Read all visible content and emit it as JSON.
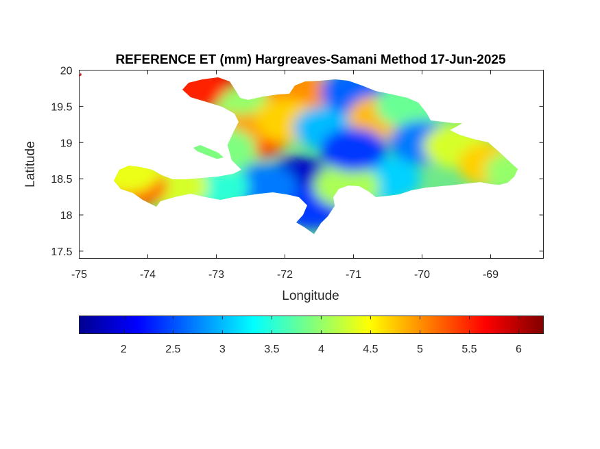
{
  "chart_data": {
    "type": "heatmap",
    "title": "REFERENCE ET (mm) Hargreaves-Samani Method  17-Jun-2025",
    "xlabel": "Longitude",
    "ylabel": "Latitude",
    "xlim": [
      -75,
      -68.23
    ],
    "ylim": [
      17.4,
      20
    ],
    "xticks": [
      -75,
      -74,
      -73,
      -72,
      -71,
      -70,
      -69
    ],
    "xtick_labels": [
      "-75",
      "-74",
      "-73",
      "-72",
      "-71",
      "-70",
      "-69"
    ],
    "yticks": [
      17.5,
      18,
      18.5,
      19,
      19.5,
      20
    ],
    "ytick_labels": [
      "17.5",
      "18",
      "18.5",
      "19",
      "19.5",
      "20"
    ],
    "grid": false,
    "colormap": "jet",
    "colorbar": {
      "orientation": "horizontal",
      "location": "below",
      "range": [
        1.55,
        6.25
      ],
      "ticks": [
        2,
        2.5,
        3,
        3.5,
        4,
        4.5,
        5,
        5.5,
        6
      ],
      "tick_labels": [
        "2",
        "2.5",
        "3",
        "3.5",
        "4",
        "4.5",
        "5",
        "5.5",
        "6"
      ]
    },
    "regions": [
      {
        "lon": -72.9,
        "lat": 19.85,
        "value": 5.9
      },
      {
        "lon": -73.3,
        "lat": 19.75,
        "value": 5.5
      },
      {
        "lon": -72.5,
        "lat": 19.5,
        "value": 4.0
      },
      {
        "lon": -71.8,
        "lat": 19.7,
        "value": 5.0
      },
      {
        "lon": -72.4,
        "lat": 19.1,
        "value": 5.4
      },
      {
        "lon": -72.0,
        "lat": 19.3,
        "value": 4.7
      },
      {
        "lon": -72.8,
        "lat": 19.1,
        "value": 4.9
      },
      {
        "lon": -71.4,
        "lat": 19.2,
        "value": 3.0
      },
      {
        "lon": -71.0,
        "lat": 19.7,
        "value": 2.6
      },
      {
        "lon": -70.6,
        "lat": 19.35,
        "value": 4.8
      },
      {
        "lon": -70.2,
        "lat": 19.5,
        "value": 3.8
      },
      {
        "lon": -70.0,
        "lat": 19.0,
        "value": 2.7
      },
      {
        "lon": -69.5,
        "lat": 18.95,
        "value": 4.3
      },
      {
        "lon": -69.0,
        "lat": 18.7,
        "value": 4.7
      },
      {
        "lon": -68.6,
        "lat": 18.6,
        "value": 4.0
      },
      {
        "lon": -70.5,
        "lat": 18.5,
        "value": 3.1
      },
      {
        "lon": -71.8,
        "lat": 18.5,
        "value": 1.9
      },
      {
        "lon": -71.6,
        "lat": 18.1,
        "value": 2.4
      },
      {
        "lon": -72.3,
        "lat": 18.4,
        "value": 2.7
      },
      {
        "lon": -73.0,
        "lat": 18.4,
        "value": 3.5
      },
      {
        "lon": -73.6,
        "lat": 18.4,
        "value": 4.3
      },
      {
        "lon": -74.2,
        "lat": 18.4,
        "value": 5.2
      },
      {
        "lon": -74.3,
        "lat": 18.6,
        "value": 4.4
      },
      {
        "lon": -72.9,
        "lat": 18.9,
        "value": 3.9
      },
      {
        "lon": -71.1,
        "lat": 18.4,
        "value": 4.1
      },
      {
        "lon": -71.0,
        "lat": 18.9,
        "value": 2.4
      }
    ]
  }
}
